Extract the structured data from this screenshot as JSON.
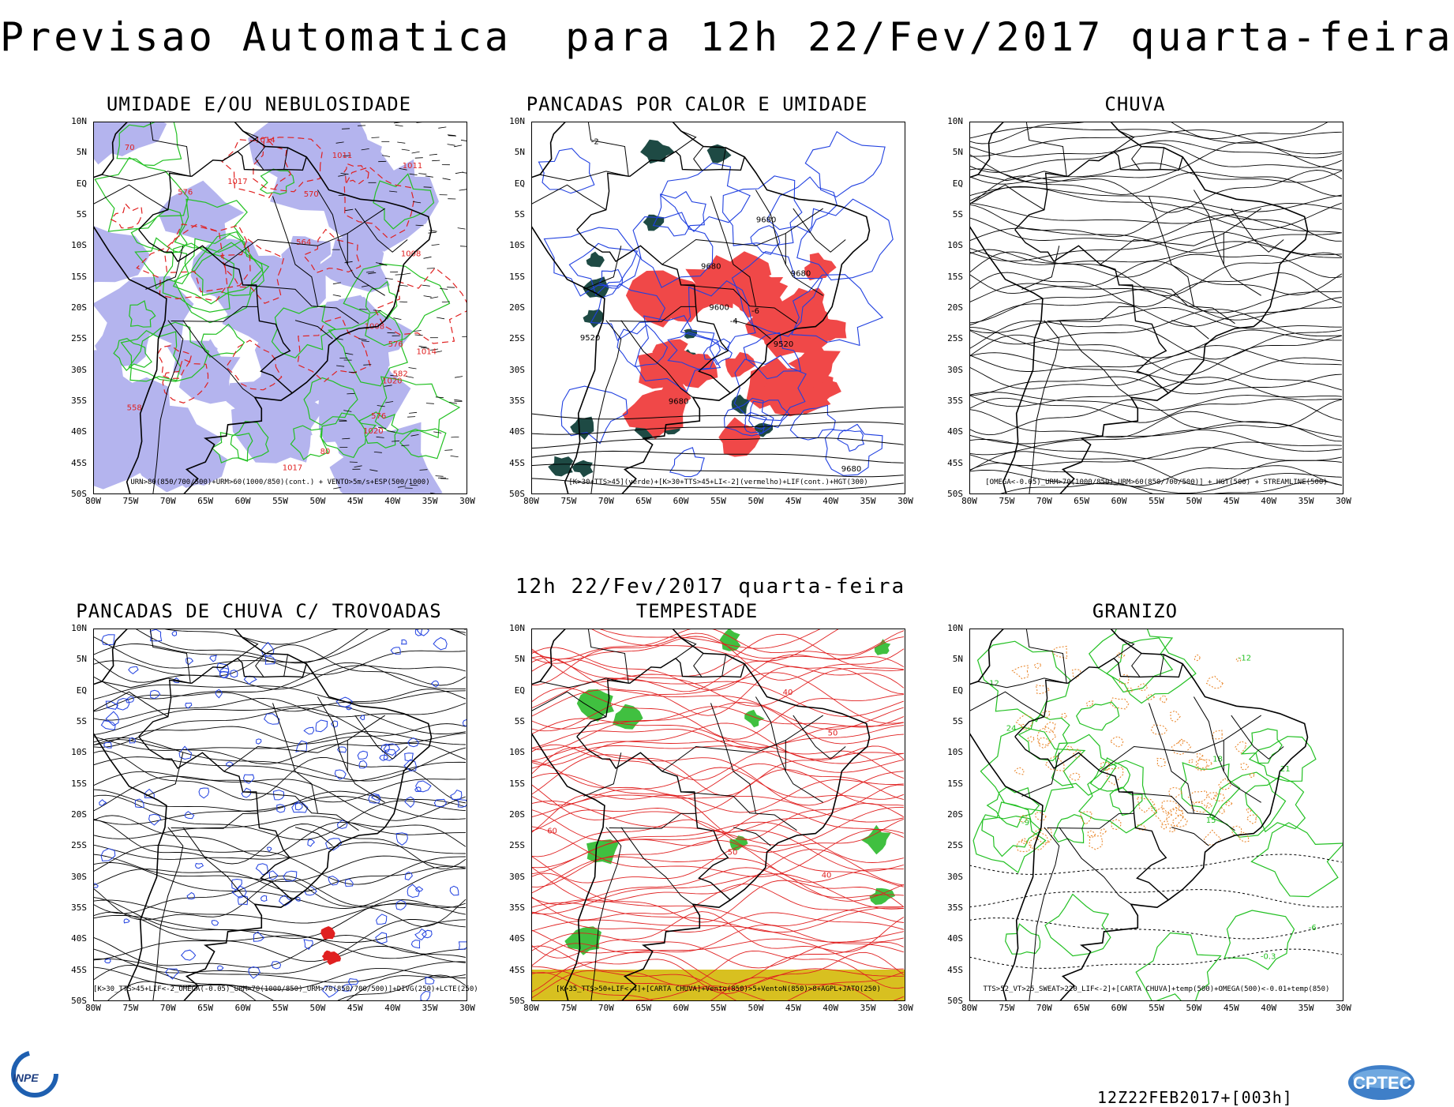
{
  "main_title": "Previsao Automatica  para 12h 22/Fev/2017 quarta-feira",
  "mid_title": "12h 22/Fev/2017 quarta-feira",
  "run_id": "12Z22FEB2017+[003h]",
  "logos": {
    "inpe": "INPE",
    "cptec": "CPTEC"
  },
  "lat_labels": [
    "10N",
    "5N",
    "EQ",
    "5S",
    "10S",
    "15S",
    "20S",
    "25S",
    "30S",
    "35S",
    "40S",
    "45S",
    "50S"
  ],
  "lon_labels": [
    "80W",
    "75W",
    "70W",
    "65W",
    "60W",
    "55W",
    "50W",
    "45W",
    "40W",
    "35W",
    "30W"
  ],
  "panels": [
    {
      "id": "umidade",
      "title": "UMIDADE E/OU NEBULOSIDADE",
      "caption": "URN>80(850/700/500)+URM>60(1000/850)(cont.) + VENTO>5m/s+ESP(500/1000)",
      "contour_labels": [
        "576",
        "576",
        "1008",
        "1008",
        "1011",
        "1014",
        "1017",
        "1020",
        "582",
        "70",
        "80",
        "1011",
        "1020",
        "1014",
        "1017",
        "558",
        "564",
        "570",
        "576"
      ],
      "colors": {
        "fill": "#b4b4ee",
        "green": "#22c022",
        "red": "#e02020"
      }
    },
    {
      "id": "pancadas-calor",
      "title": "PANCADAS POR CALOR E UMIDADE",
      "caption": "[K>30+TTS>45](verde)+[K>30+TTS>45+LI<-2](vermelho)+LIF(cont.)+HGT(300)",
      "contour_labels": [
        "9680",
        "9680",
        "9680",
        "-2",
        "-4",
        "-6",
        "9680",
        "9520",
        "9600",
        "9520",
        "9680"
      ],
      "colors": {
        "fill_red": "#f04848",
        "fill_green": "#1e4a44",
        "blue": "#2040e0"
      }
    },
    {
      "id": "chuva",
      "title": "CHUVA",
      "caption": "[OMEGA<-0.05)_URM>70(1000/850)_URM>60(850/700/500)] + HGT(500) + STREAMLINE(500)",
      "contour_labels": [],
      "colors": {
        "lines": "#000000"
      }
    },
    {
      "id": "trovoadas",
      "title": "PANCADAS DE CHUVA C/ TROVOADAS",
      "caption": "[K>30_TTS>45+LIF<-2_OMEGA(-0.05)_URM>70(1000/850)_URM>70(850/700/500)]+DIVG(250)+LCTE(250)",
      "contour_labels": [],
      "colors": {
        "blue": "#2040e0",
        "red": "#e02020"
      }
    },
    {
      "id": "tempestade",
      "title": "TEMPESTADE",
      "caption": "[K>35_TTS>50+LIF<-4]+[CARTA CHUVA]+Vento(850)>5+VentoN(850)>8+AGPL+JATO(250)",
      "contour_labels": [
        "40",
        "50",
        "60",
        "40",
        "50"
      ],
      "colors": {
        "red": "#e02020",
        "green": "#40c040",
        "yellow": "#d8c020"
      }
    },
    {
      "id": "granizo",
      "title": "GRANIZO",
      "caption": "TTS>52_VT>25_SWEAT>220_LIF<-2]+[CARTA CHUVA]+temp(500)+OMEGA(500)<-0.01+temp(850)",
      "contour_labels": [
        "18",
        "15",
        "12",
        "21",
        "24",
        "-0.3",
        "-6",
        "-9",
        "-12"
      ],
      "colors": {
        "orange": "#e88020",
        "green": "#22c022",
        "black": "#000000"
      }
    }
  ]
}
